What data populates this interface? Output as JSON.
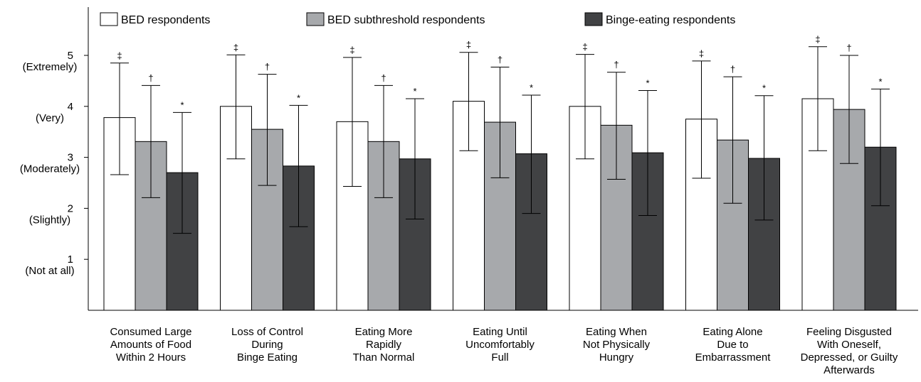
{
  "chart_data": {
    "type": "bar",
    "title": "",
    "xlabel": "",
    "ylabel": "",
    "ylim": [
      0,
      6
    ],
    "grid": false,
    "legend_position": "top",
    "y_ticks": [
      {
        "value": 1,
        "number": "1",
        "label": "(Not at all)"
      },
      {
        "value": 2,
        "number": "2",
        "label": "(Slightly)"
      },
      {
        "value": 3,
        "number": "3",
        "label": "(Moderately)"
      },
      {
        "value": 4,
        "number": "4",
        "label": "(Very)"
      },
      {
        "value": 5,
        "number": "5",
        "label": "(Extremely)"
      }
    ],
    "categories": [
      [
        "Consumed Large",
        "Amounts of Food",
        "Within 2 Hours"
      ],
      [
        "Loss of Control",
        "During",
        "Binge Eating"
      ],
      [
        "Eating More",
        "Rapidly",
        "Than Normal"
      ],
      [
        "Eating Until",
        "Uncomfortably",
        "Full"
      ],
      [
        "Eating When",
        "Not Physically",
        "Hungry"
      ],
      [
        "Eating  Alone",
        "Due to",
        "Embarrassment"
      ],
      [
        "Feeling Disgusted",
        "With Oneself,",
        "Depressed, or Guilty",
        "Afterwards"
      ]
    ],
    "series": [
      {
        "name": "BED respondents",
        "color": "#ffffff",
        "values": [
          3.78,
          4.0,
          3.7,
          4.1,
          4.0,
          3.75,
          4.15
        ],
        "error_low": [
          2.66,
          2.97,
          2.43,
          3.13,
          2.97,
          2.59,
          3.13
        ],
        "error_high": [
          4.85,
          5.01,
          4.96,
          5.06,
          5.02,
          4.89,
          5.17
        ],
        "significance": [
          "‡",
          "‡",
          "‡",
          "‡",
          "‡",
          "‡",
          "‡"
        ]
      },
      {
        "name": "BED subthreshold respondents",
        "color": "#a7a9ac",
        "values": [
          3.31,
          3.55,
          3.31,
          3.69,
          3.63,
          3.34,
          3.94
        ],
        "error_low": [
          2.21,
          2.45,
          2.21,
          2.6,
          2.57,
          2.1,
          2.88
        ],
        "error_high": [
          4.41,
          4.63,
          4.41,
          4.77,
          4.67,
          4.58,
          5.0
        ],
        "significance": [
          "†",
          "†",
          "†",
          "†",
          "†",
          "†",
          "†"
        ]
      },
      {
        "name": "Binge-eating respondents",
        "color": "#414244",
        "values": [
          2.7,
          2.83,
          2.97,
          3.07,
          3.09,
          2.98,
          3.2
        ],
        "error_low": [
          1.51,
          1.64,
          1.79,
          1.9,
          1.86,
          1.77,
          2.05
        ],
        "error_high": [
          3.88,
          4.02,
          4.15,
          4.22,
          4.31,
          4.21,
          4.34
        ],
        "significance": [
          "*",
          "*",
          "*",
          "*",
          "*",
          "*",
          "*"
        ]
      }
    ]
  }
}
